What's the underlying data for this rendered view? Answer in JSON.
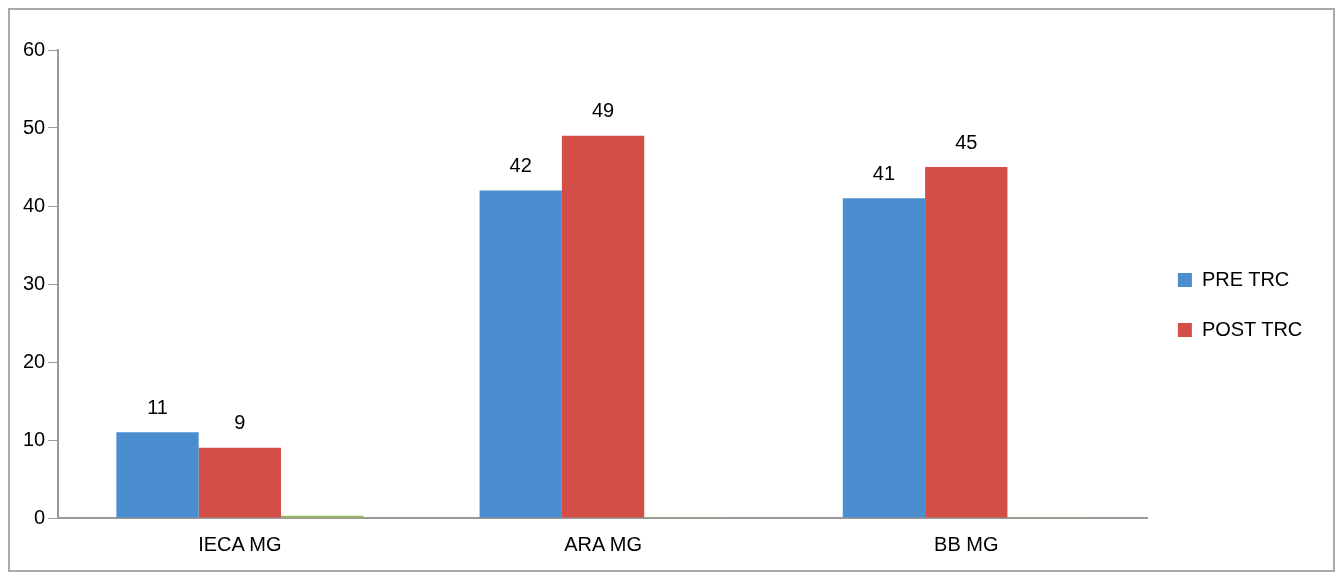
{
  "chart_data": {
    "type": "bar",
    "categories": [
      "IECA MG",
      "ARA MG",
      "BB MG"
    ],
    "series": [
      {
        "name": "PRE TRC",
        "color": "#4a8ed0",
        "values": [
          11,
          42,
          41
        ],
        "value_labels": [
          "11",
          "42",
          "41"
        ]
      },
      {
        "name": "POST TRC",
        "color": "#d24e47",
        "values": [
          9,
          49,
          45
        ],
        "value_labels": [
          "9",
          "49",
          "45"
        ]
      },
      {
        "color": "#9bbb59",
        "values": [
          0.3,
          0.1,
          0.1
        ]
      }
    ],
    "ylim": [
      0,
      60
    ],
    "yticks": [
      0,
      10,
      20,
      30,
      40,
      50,
      60
    ],
    "grid": false,
    "legend": "right"
  }
}
